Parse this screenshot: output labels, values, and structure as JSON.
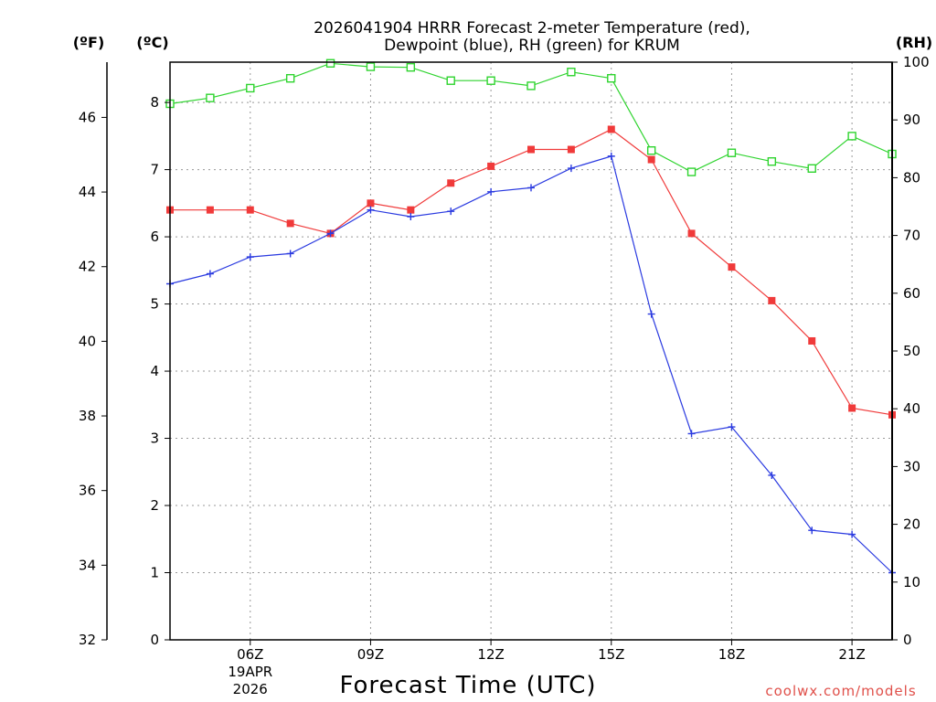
{
  "chart_data": {
    "type": "line",
    "title_line1": "2026041904 HRRR Forecast 2-meter Temperature (red),",
    "title_line2": "Dewpoint (blue), RH (green) for KRUM",
    "xlabel": "Forecast Time (UTC)",
    "unit_f": "(ºF)",
    "unit_c": "(ºC)",
    "unit_rh": "(RH)",
    "credit": "coolwx.com/models",
    "hours": [
      4,
      5,
      6,
      7,
      8,
      9,
      10,
      11,
      12,
      13,
      14,
      15,
      16,
      17,
      18,
      19,
      20,
      21,
      22
    ],
    "xlim": [
      4,
      22
    ],
    "x_ticks": [
      {
        "hour": 6,
        "label": "06Z",
        "sub1": "19APR",
        "sub2": "2026"
      },
      {
        "hour": 9,
        "label": "09Z"
      },
      {
        "hour": 12,
        "label": "12Z"
      },
      {
        "hour": 15,
        "label": "15Z"
      },
      {
        "hour": 18,
        "label": "18Z"
      },
      {
        "hour": 21,
        "label": "21Z"
      }
    ],
    "ylim_c": [
      0,
      8.6
    ],
    "ylim_f": [
      32,
      47.48
    ],
    "ylim_rh": [
      0,
      100
    ],
    "ticks_c": [
      0,
      1,
      2,
      3,
      4,
      5,
      6,
      7,
      8
    ],
    "ticks_f": [
      32,
      34,
      36,
      38,
      40,
      42,
      44,
      46
    ],
    "ticks_rh": [
      0,
      10,
      20,
      30,
      40,
      50,
      60,
      70,
      80,
      90,
      100
    ],
    "series": [
      {
        "name": "Temperature",
        "color": "#f03a3a",
        "marker": "filled-square",
        "axis": "c",
        "values": [
          6.4,
          6.4,
          6.4,
          6.2,
          6.05,
          6.5,
          6.4,
          6.8,
          7.05,
          7.3,
          7.3,
          7.6,
          7.15,
          6.05,
          5.55,
          5.05,
          4.45,
          3.45,
          3.35
        ]
      },
      {
        "name": "Dewpoint",
        "color": "#2a3ae0",
        "marker": "plus",
        "axis": "c",
        "values": [
          5.3,
          5.45,
          5.7,
          5.75,
          6.05,
          6.4,
          6.3,
          6.38,
          6.67,
          6.73,
          7.02,
          7.2,
          4.85,
          3.07,
          3.17,
          2.45,
          1.63,
          1.57,
          1.0
        ]
      },
      {
        "name": "RH",
        "color": "#2fd42f",
        "marker": "open-square",
        "axis": "rh",
        "values": [
          92.8,
          93.8,
          95.5,
          97.2,
          99.8,
          99.2,
          99.1,
          96.8,
          96.8,
          95.9,
          98.3,
          97.2,
          84.7,
          81.0,
          84.3,
          82.8,
          81.6,
          87.2,
          84.1
        ]
      }
    ]
  }
}
